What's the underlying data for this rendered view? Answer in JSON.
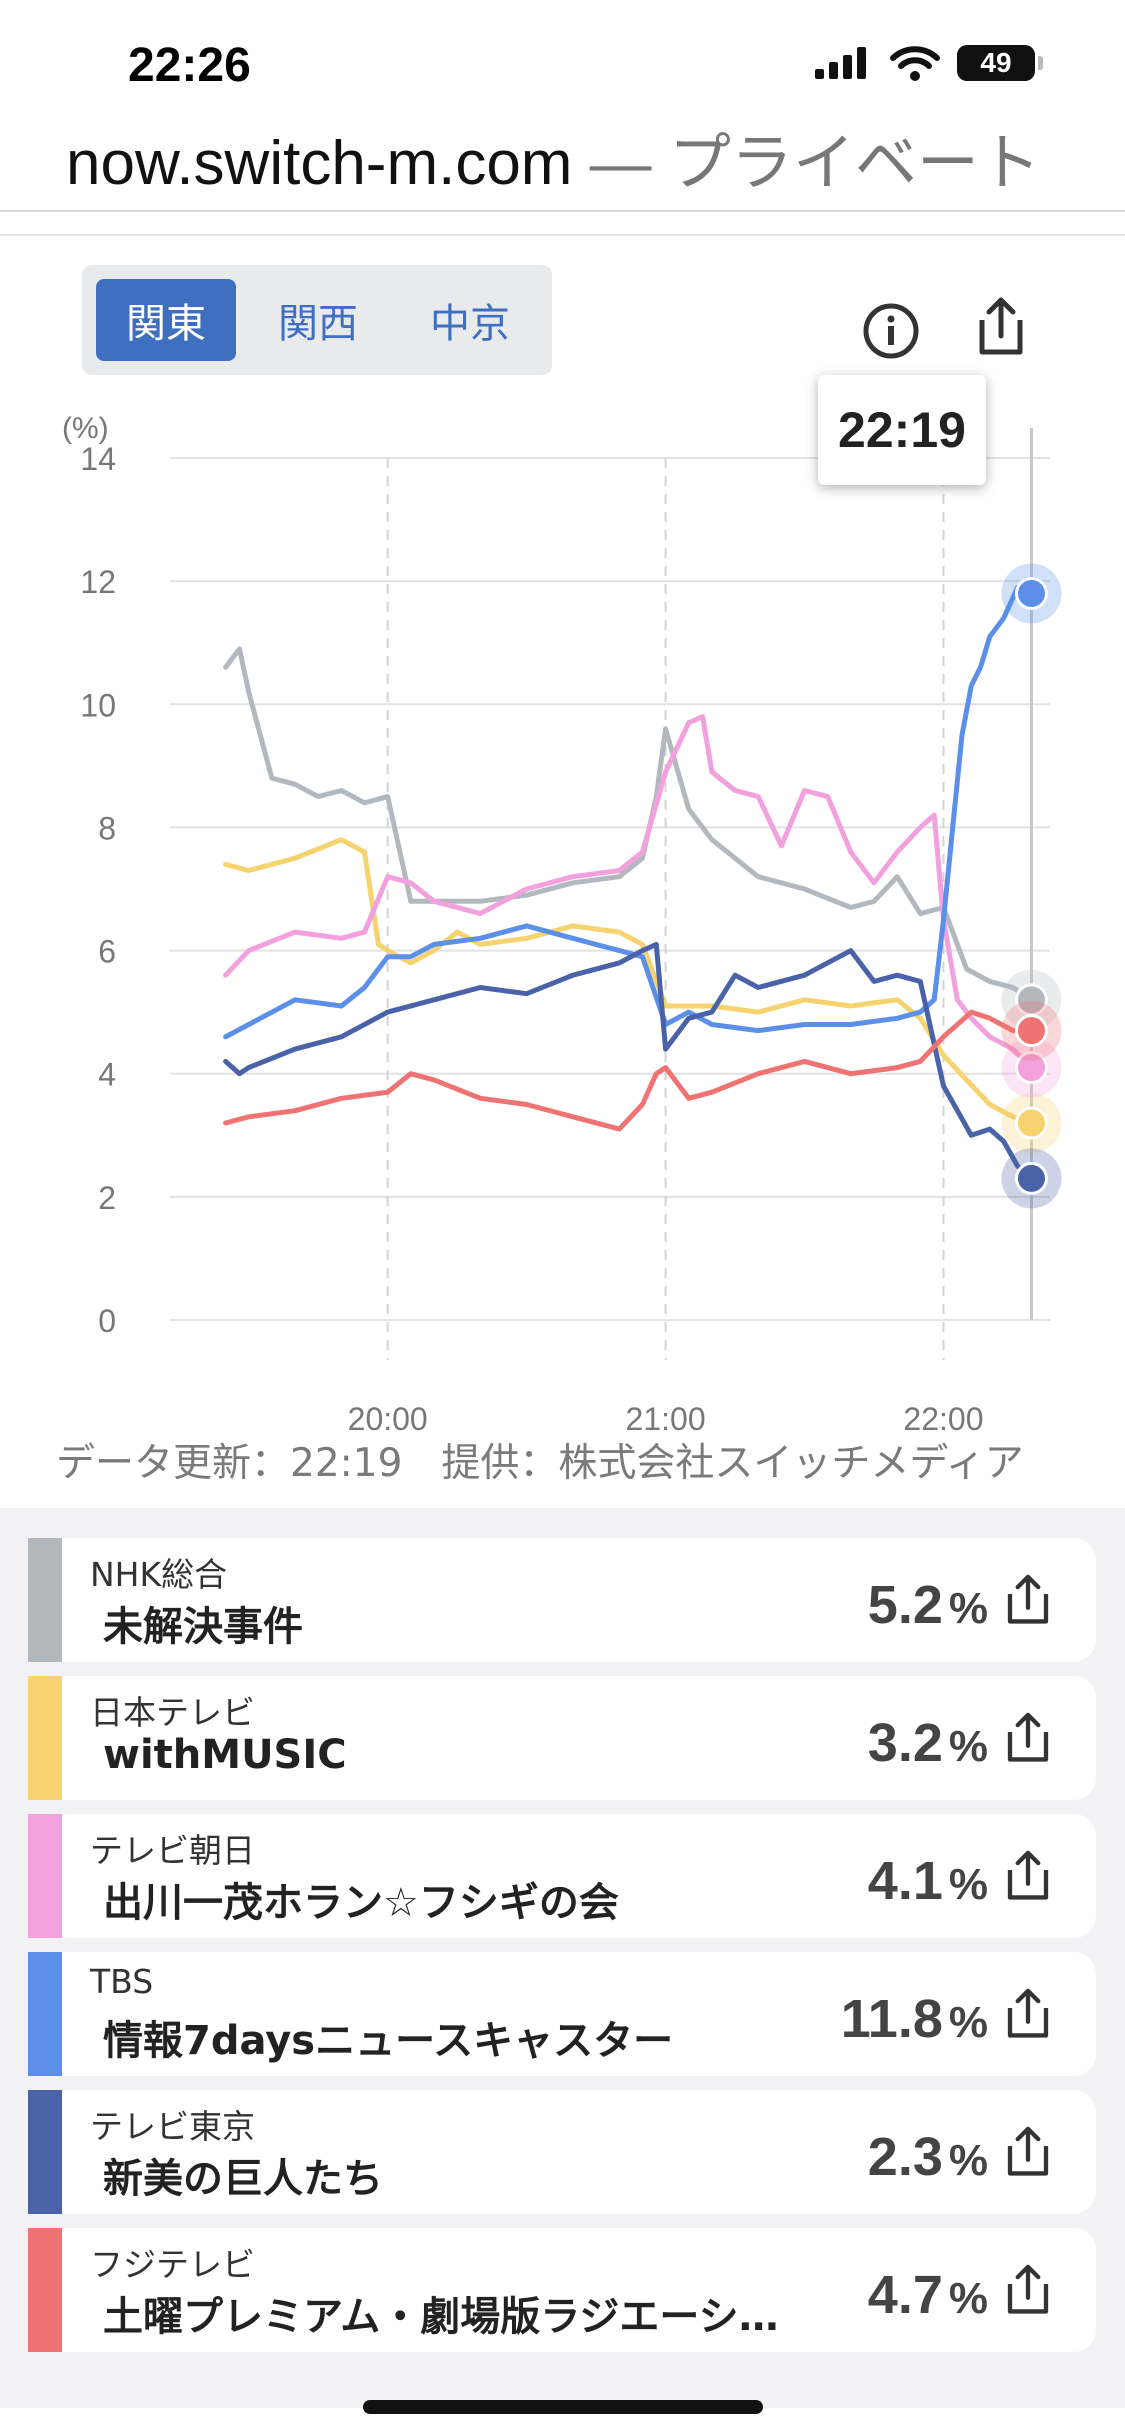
{
  "status_bar": {
    "time": "22:26",
    "battery": "49"
  },
  "browser": {
    "url": "now.switch-m.com",
    "url_suffix": " — プライベート"
  },
  "region_tabs": [
    {
      "label": "関東",
      "active": true
    },
    {
      "label": "関西",
      "active": false
    },
    {
      "label": "中京",
      "active": false
    }
  ],
  "tooltip": {
    "time": "22:19"
  },
  "chart_data": {
    "type": "line",
    "ylabel": "(%)",
    "ylim": [
      0,
      14
    ],
    "y_ticks": [
      "0",
      "2",
      "4",
      "6",
      "8",
      "10",
      "12",
      "14"
    ],
    "x_ticks": [
      "20:00",
      "21:00",
      "22:00"
    ],
    "grid": true,
    "series": [
      {
        "name": "NHK総合",
        "color": "#b3b8bf",
        "x": [
          "19:25",
          "19:28",
          "19:30",
          "19:35",
          "19:40",
          "19:45",
          "19:50",
          "19:55",
          "20:00",
          "20:05",
          "20:10",
          "20:20",
          "20:30",
          "20:40",
          "20:50",
          "20:55",
          "20:58",
          "21:00",
          "21:05",
          "21:10",
          "21:20",
          "21:30",
          "21:40",
          "21:45",
          "21:50",
          "21:55",
          "22:00",
          "22:05",
          "22:10",
          "22:15",
          "22:19"
        ],
        "y": [
          10.6,
          10.9,
          10.2,
          8.8,
          8.7,
          8.5,
          8.6,
          8.4,
          8.5,
          6.8,
          6.8,
          6.8,
          6.9,
          7.1,
          7.2,
          7.5,
          8.5,
          9.6,
          8.3,
          7.8,
          7.2,
          7.0,
          6.7,
          6.8,
          7.2,
          6.6,
          6.7,
          5.7,
          5.5,
          5.4,
          5.2
        ]
      },
      {
        "name": "日本テレビ",
        "color": "#f6d36e",
        "x": [
          "19:25",
          "19:30",
          "19:40",
          "19:50",
          "19:55",
          "19:58",
          "20:00",
          "20:05",
          "20:10",
          "20:15",
          "20:20",
          "20:30",
          "20:40",
          "20:50",
          "20:55",
          "21:00",
          "21:10",
          "21:20",
          "21:30",
          "21:40",
          "21:50",
          "21:55",
          "22:00",
          "22:05",
          "22:10",
          "22:15",
          "22:19"
        ],
        "y": [
          7.4,
          7.3,
          7.5,
          7.8,
          7.6,
          6.1,
          6.0,
          5.8,
          6.0,
          6.3,
          6.1,
          6.2,
          6.4,
          6.3,
          6.1,
          5.1,
          5.1,
          5.0,
          5.2,
          5.1,
          5.2,
          4.9,
          4.3,
          3.9,
          3.5,
          3.3,
          3.2
        ]
      },
      {
        "name": "テレビ朝日",
        "color": "#f2a0de",
        "x": [
          "19:25",
          "19:30",
          "19:40",
          "19:50",
          "19:55",
          "20:00",
          "20:05",
          "20:10",
          "20:20",
          "20:30",
          "20:40",
          "20:50",
          "20:55",
          "21:00",
          "21:05",
          "21:08",
          "21:10",
          "21:15",
          "21:20",
          "21:25",
          "21:30",
          "21:35",
          "21:40",
          "21:45",
          "21:50",
          "21:55",
          "21:58",
          "22:00",
          "22:03",
          "22:06",
          "22:10",
          "22:15",
          "22:19"
        ],
        "y": [
          5.6,
          6.0,
          6.3,
          6.2,
          6.3,
          7.2,
          7.1,
          6.8,
          6.6,
          7.0,
          7.2,
          7.3,
          7.6,
          8.9,
          9.7,
          9.8,
          8.9,
          8.6,
          8.5,
          7.7,
          8.6,
          8.5,
          7.6,
          7.1,
          7.6,
          8.0,
          8.2,
          6.5,
          5.2,
          4.9,
          4.6,
          4.4,
          4.1
        ]
      },
      {
        "name": "TBS",
        "color": "#5b8fe8",
        "x": [
          "19:25",
          "19:30",
          "19:40",
          "19:50",
          "19:55",
          "20:00",
          "20:05",
          "20:10",
          "20:20",
          "20:30",
          "20:40",
          "20:50",
          "20:55",
          "21:00",
          "21:05",
          "21:10",
          "21:20",
          "21:30",
          "21:40",
          "21:50",
          "21:55",
          "21:58",
          "22:00",
          "22:02",
          "22:04",
          "22:06",
          "22:08",
          "22:10",
          "22:13",
          "22:16",
          "22:19"
        ],
        "y": [
          4.6,
          4.8,
          5.2,
          5.1,
          5.4,
          5.9,
          5.9,
          6.1,
          6.2,
          6.4,
          6.2,
          6.0,
          5.9,
          4.8,
          5.0,
          4.8,
          4.7,
          4.8,
          4.8,
          4.9,
          5.0,
          5.2,
          6.5,
          8.0,
          9.5,
          10.3,
          10.6,
          11.1,
          11.4,
          11.9,
          11.8
        ]
      },
      {
        "name": "テレビ東京",
        "color": "#4a62a8",
        "x": [
          "19:25",
          "19:28",
          "19:30",
          "19:40",
          "19:50",
          "20:00",
          "20:10",
          "20:20",
          "20:30",
          "20:40",
          "20:50",
          "20:55",
          "20:58",
          "21:00",
          "21:05",
          "21:10",
          "21:15",
          "21:20",
          "21:30",
          "21:40",
          "21:45",
          "21:50",
          "21:55",
          "22:00",
          "22:03",
          "22:06",
          "22:10",
          "22:13",
          "22:16",
          "22:19"
        ],
        "y": [
          4.2,
          4.0,
          4.1,
          4.4,
          4.6,
          5.0,
          5.2,
          5.4,
          5.3,
          5.6,
          5.8,
          6.0,
          6.1,
          4.4,
          4.9,
          5.0,
          5.6,
          5.4,
          5.6,
          6.0,
          5.5,
          5.6,
          5.5,
          3.8,
          3.4,
          3.0,
          3.1,
          2.9,
          2.5,
          2.3
        ]
      },
      {
        "name": "フジテレビ",
        "color": "#ef7373",
        "x": [
          "19:25",
          "19:30",
          "19:40",
          "19:50",
          "20:00",
          "20:05",
          "20:10",
          "20:20",
          "20:30",
          "20:40",
          "20:50",
          "20:55",
          "20:58",
          "21:00",
          "21:05",
          "21:10",
          "21:20",
          "21:30",
          "21:40",
          "21:50",
          "21:55",
          "22:00",
          "22:03",
          "22:06",
          "22:10",
          "22:15",
          "22:19"
        ],
        "y": [
          3.2,
          3.3,
          3.4,
          3.6,
          3.7,
          4.0,
          3.9,
          3.6,
          3.5,
          3.3,
          3.1,
          3.5,
          4.0,
          4.1,
          3.6,
          3.7,
          4.0,
          4.2,
          4.0,
          4.1,
          4.2,
          4.6,
          4.8,
          5.0,
          4.9,
          4.7,
          4.7
        ]
      }
    ]
  },
  "footnote": "データ更新：22:19　提供：株式会社スイッチメディア",
  "channels": [
    {
      "channel": "NHK総合",
      "program": "未解決事件",
      "value": "5.2",
      "unit": "%",
      "color": "#b3b8bf"
    },
    {
      "channel": "日本テレビ",
      "program": "withMUSIC",
      "value": "3.2",
      "unit": "%",
      "color": "#f6d36e"
    },
    {
      "channel": "テレビ朝日",
      "program": "出川一茂ホラン☆フシギの会",
      "value": "4.1",
      "unit": "%",
      "color": "#f2a0de"
    },
    {
      "channel": "TBS",
      "program": "情報7daysニュースキャスター",
      "value": "11.8",
      "unit": "%",
      "color": "#5b8fe8"
    },
    {
      "channel": "テレビ東京",
      "program": "新美の巨人たち",
      "value": "2.3",
      "unit": "%",
      "color": "#4a62a8"
    },
    {
      "channel": "フジテレビ",
      "program": "土曜プレミアム・劇場版ラジエーシ…",
      "value": "4.7",
      "unit": "%",
      "color": "#ef7373"
    }
  ]
}
